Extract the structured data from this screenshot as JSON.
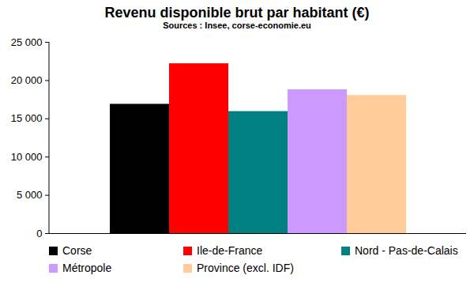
{
  "chart_data": {
    "type": "bar",
    "title": "Revenu disponible brut par habitant  (€)",
    "subtitle": "Sources : Insee, corse-economie.eu",
    "categories": [
      "Corse",
      "Ile-de-France",
      "Nord - Pas-de-Calais",
      "Métropole",
      "Province (excl. IDF)"
    ],
    "values": [
      16900,
      22200,
      15950,
      18800,
      18050
    ],
    "colors": [
      "#000000",
      "#ff0000",
      "#008080",
      "#cc99ff",
      "#ffcc99"
    ],
    "ylim": [
      0,
      25000
    ],
    "yticks": [
      0,
      {
        "value": 5000,
        "label": "5 000"
      },
      {
        "value": 10000,
        "label": "10 000"
      },
      {
        "value": 15000,
        "label": "15 000"
      },
      {
        "value": 20000,
        "label": "20 000"
      },
      {
        "value": 25000,
        "label": "25 000"
      }
    ],
    "grid": false,
    "legend": "bottom",
    "tick_labels": "y"
  }
}
